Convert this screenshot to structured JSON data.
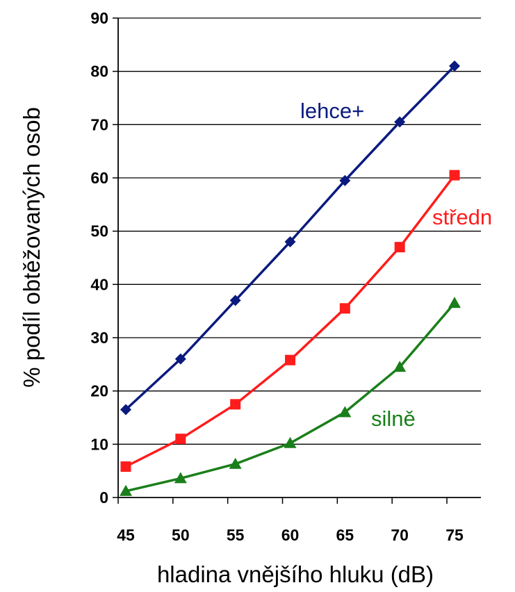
{
  "chart_data": {
    "type": "line",
    "title": "",
    "xlabel": "hladina vnějšího hluku (dB)",
    "ylabel": "% podíl obtěžovaných osob",
    "x": [
      45,
      50,
      55,
      60,
      65,
      70,
      75
    ],
    "x_ticks": [
      "45",
      "50",
      "55",
      "60",
      "65",
      "70",
      "75"
    ],
    "y_ticks": [
      "0",
      "10",
      "20",
      "30",
      "40",
      "50",
      "60",
      "70",
      "80",
      "90"
    ],
    "ylim": [
      0,
      90
    ],
    "grid": "horizontal",
    "legend": "none",
    "series": [
      {
        "name": "lehce+",
        "color": "#0a1a7f",
        "marker": "diamond",
        "values": [
          16.5,
          26,
          37,
          48,
          59.5,
          70.5,
          81
        ]
      },
      {
        "name": "středn",
        "color": "#ff1c1c",
        "marker": "square",
        "values": [
          5.8,
          11,
          17.5,
          25.8,
          35.5,
          47,
          60.5
        ]
      },
      {
        "name": "silně",
        "color": "#1a7f1a",
        "marker": "triangle",
        "values": [
          1.2,
          3.6,
          6.3,
          10.2,
          16,
          24.5,
          36.5
        ]
      }
    ]
  }
}
